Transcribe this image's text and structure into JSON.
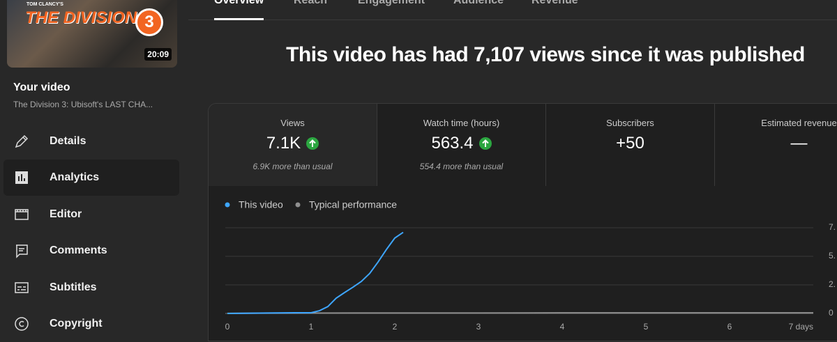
{
  "sidebar": {
    "thumbnail": {
      "brand": "TOM CLANCY'S",
      "title": "THE DIVISION",
      "number": "3",
      "duration": "20:09"
    },
    "heading": "Your video",
    "video_title": "The Division 3: Ubisoft's LAST CHA...",
    "nav": [
      "Details",
      "Analytics",
      "Editor",
      "Comments",
      "Subtitles",
      "Copyright"
    ],
    "active_nav": 1
  },
  "tabs": [
    "Overview",
    "Reach",
    "Engagement",
    "Audience",
    "Revenue"
  ],
  "active_tab": 0,
  "headline": "This video has had 7,107 views since it was published",
  "metrics": [
    {
      "label": "Views",
      "value": "7.1K",
      "trend": "up",
      "note": "6.9K more than usual"
    },
    {
      "label": "Watch time (hours)",
      "value": "563.4",
      "trend": "up",
      "note": "554.4 more than usual"
    },
    {
      "label": "Subscribers",
      "value": "+50"
    },
    {
      "label": "Estimated revenue",
      "value": "—"
    }
  ],
  "chart_data": {
    "type": "line",
    "series": [
      {
        "name": "This video",
        "color": "#3ea6ff",
        "x": [
          0,
          0.8,
          1.0,
          1.1,
          1.2,
          1.3,
          1.4,
          1.5,
          1.6,
          1.7,
          1.8,
          1.9,
          2.0,
          2.1
        ],
        "values": [
          0,
          0.06,
          0.06,
          0.24,
          0.6,
          1.34,
          1.83,
          2.3,
          2.8,
          3.5,
          4.5,
          5.6,
          6.6,
          7.1
        ]
      },
      {
        "name": "Typical performance",
        "color": "#909090",
        "x": [
          0,
          1,
          2,
          3,
          4,
          5,
          6,
          7
        ],
        "values": [
          0.01,
          0.03,
          0.04,
          0.04,
          0.05,
          0.05,
          0.05,
          0.05
        ]
      }
    ],
    "xlim": [
      0,
      7
    ],
    "xticks": [
      0,
      1,
      2,
      3,
      4,
      5,
      6,
      {
        "value": 7,
        "label": "7 days"
      }
    ],
    "ylim": [
      0,
      7.5
    ],
    "yticks": [
      {
        "value": 7.5,
        "label": "7."
      },
      {
        "value": 5,
        "label": "5."
      },
      {
        "value": 2.5,
        "label": "2."
      },
      0
    ],
    "grid": true
  }
}
